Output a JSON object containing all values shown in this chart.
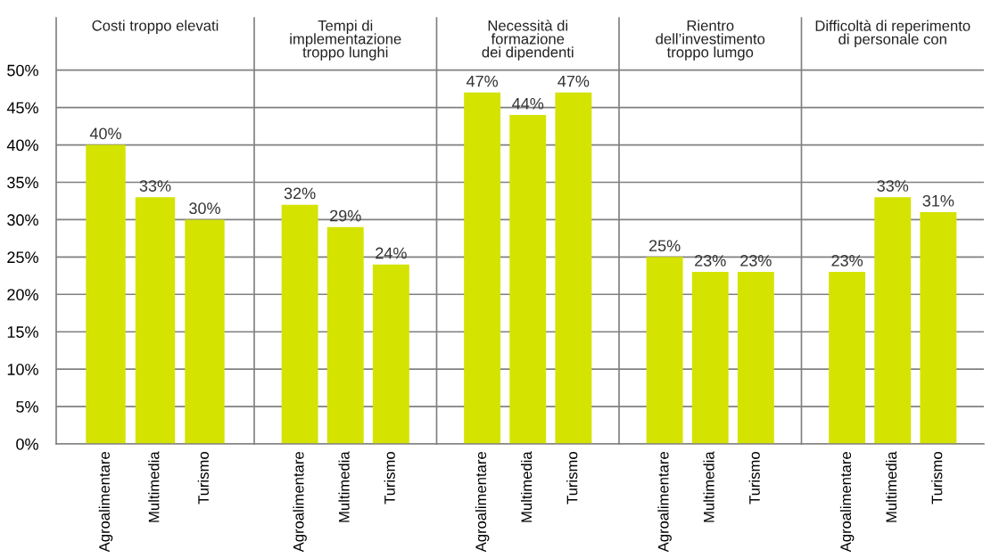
{
  "chart_data": [
    {
      "type": "bar",
      "title": "Costi troppo elevati",
      "categories": [
        "Agroalimentare",
        "Multimedia",
        "Turismo"
      ],
      "values": [
        40,
        33,
        30
      ],
      "value_labels": [
        "40%",
        "33%",
        "30%"
      ],
      "color": "#d4e300",
      "ylim": [
        0,
        57
      ],
      "yticks": [
        {
          "value": 0,
          "label": "0%"
        },
        {
          "value": 5,
          "label": "5%"
        },
        {
          "value": 10,
          "label": "10%"
        },
        {
          "value": 15,
          "label": "15%"
        },
        {
          "value": 20,
          "label": "20%"
        },
        {
          "value": 25,
          "label": "25%"
        },
        {
          "value": 30,
          "label": "30%"
        },
        {
          "value": 35,
          "label": "35%"
        },
        {
          "value": 40,
          "label": "40%"
        },
        {
          "value": 45,
          "label": "45%"
        },
        {
          "value": 50,
          "label": "50%"
        }
      ],
      "grid": "y"
    },
    {
      "type": "bar",
      "title": "Tempi di\nimplementazione\ntroppo lunghi",
      "categories": [
        "Agroalimentare",
        "Multimedia",
        "Turismo"
      ],
      "values": [
        32,
        29,
        24
      ],
      "value_labels": [
        "32%",
        "29%",
        "24%"
      ],
      "color": "#d4e300",
      "ylim": [
        0,
        57
      ],
      "yticks": [
        {
          "value": 0,
          "label": null
        },
        {
          "value": 5,
          "label": null
        },
        {
          "value": 10,
          "label": null
        },
        {
          "value": 15,
          "label": null
        },
        {
          "value": 20,
          "label": null
        },
        {
          "value": 25,
          "label": null
        },
        {
          "value": 30,
          "label": null
        },
        {
          "value": 35,
          "label": null
        },
        {
          "value": 40,
          "label": null
        },
        {
          "value": 45,
          "label": null
        },
        {
          "value": 50,
          "label": null
        }
      ],
      "grid": "y",
      "tick_labels": "x"
    },
    {
      "type": "bar",
      "title": "Necessità di\nformazione\ndei dipendenti",
      "categories": [
        "Agroalimentare",
        "Multimedia",
        "Turismo"
      ],
      "values": [
        47,
        44,
        47
      ],
      "value_labels": [
        "47%",
        "44%",
        "47%"
      ],
      "color": "#d4e300",
      "ylim": [
        0,
        57
      ],
      "yticks": [
        {
          "value": 0,
          "label": null
        },
        {
          "value": 5,
          "label": null
        },
        {
          "value": 10,
          "label": null
        },
        {
          "value": 15,
          "label": null
        },
        {
          "value": 20,
          "label": null
        },
        {
          "value": 25,
          "label": null
        },
        {
          "value": 30,
          "label": null
        },
        {
          "value": 35,
          "label": null
        },
        {
          "value": 40,
          "label": null
        },
        {
          "value": 45,
          "label": null
        },
        {
          "value": 50,
          "label": null
        }
      ],
      "grid": "y",
      "tick_labels": "x"
    },
    {
      "type": "bar",
      "title": "Rientro\ndell’investimento\ntroppo lumgo",
      "categories": [
        "Agroalimentare",
        "Multimedia",
        "Turismo"
      ],
      "values": [
        25,
        23,
        23
      ],
      "value_labels": [
        "25%",
        "23%",
        "23%"
      ],
      "color": "#d4e300",
      "ylim": [
        0,
        57
      ],
      "yticks": [
        {
          "value": 0,
          "label": null
        },
        {
          "value": 5,
          "label": null
        },
        {
          "value": 10,
          "label": null
        },
        {
          "value": 15,
          "label": null
        },
        {
          "value": 20,
          "label": null
        },
        {
          "value": 25,
          "label": null
        },
        {
          "value": 30,
          "label": null
        },
        {
          "value": 35,
          "label": null
        },
        {
          "value": 40,
          "label": null
        },
        {
          "value": 45,
          "label": null
        },
        {
          "value": 50,
          "label": null
        }
      ],
      "grid": "y",
      "tick_labels": "x"
    },
    {
      "type": "bar",
      "title": "Difficoltà di reperimento\ndi personale con",
      "categories": [
        "Agroalimentare",
        "Multimedia",
        "Turismo"
      ],
      "values": [
        23,
        33,
        31
      ],
      "value_labels": [
        "23%",
        "33%",
        "31%"
      ],
      "color": "#d4e300",
      "ylim": [
        0,
        57
      ],
      "yticks": [
        {
          "value": 0,
          "label": null
        },
        {
          "value": 5,
          "label": null
        },
        {
          "value": 10,
          "label": null
        },
        {
          "value": 15,
          "label": null
        },
        {
          "value": 20,
          "label": null
        },
        {
          "value": 25,
          "label": null
        },
        {
          "value": 30,
          "label": null
        },
        {
          "value": 35,
          "label": null
        },
        {
          "value": 40,
          "label": null
        },
        {
          "value": 45,
          "label": null
        },
        {
          "value": 50,
          "label": null
        }
      ],
      "grid": "y",
      "tick_labels": "x"
    }
  ]
}
